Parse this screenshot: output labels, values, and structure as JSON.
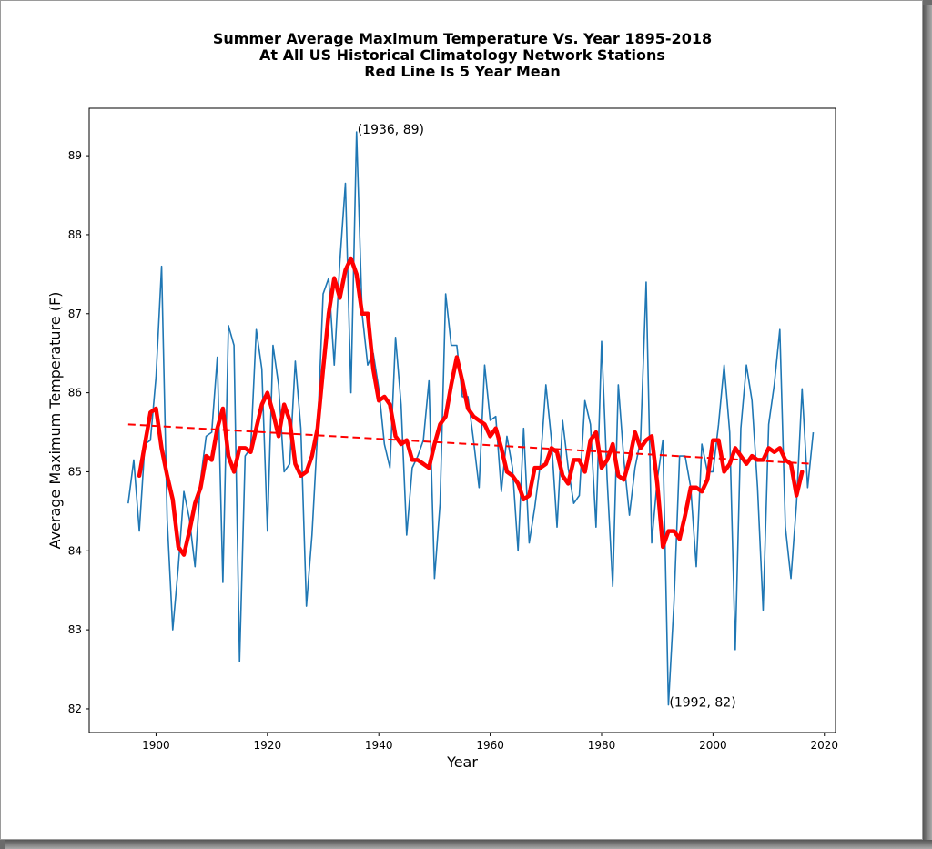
{
  "colors": {
    "raw_series": "#1f77b4",
    "mean_series": "#ff0000",
    "trend_line": "#ff0000"
  },
  "chart_data": {
    "type": "line",
    "title_lines": [
      "Summer Average Maximum Temperature Vs. Year 1895-2018",
      "At All US Historical Climatology Network Stations",
      "Red Line Is 5 Year Mean"
    ],
    "xlabel": "Year",
    "ylabel": "Average Maximum Temperature (F)",
    "xlim": [
      1888,
      2022
    ],
    "ylim": [
      81.7,
      89.6
    ],
    "xticks": [
      1900,
      1920,
      1940,
      1960,
      1980,
      2000,
      2020
    ],
    "yticks": [
      82,
      83,
      84,
      85,
      86,
      87,
      88,
      89
    ],
    "grid": false,
    "series": [
      {
        "style": "thin-blue-line",
        "x_start": 1895,
        "values": [
          84.6,
          85.15,
          84.25,
          85.35,
          85.4,
          86.2,
          87.6,
          84.4,
          83.0,
          83.8,
          84.75,
          84.4,
          83.8,
          84.9,
          85.45,
          85.5,
          86.45,
          83.6,
          86.85,
          86.6,
          82.6,
          85.2,
          85.3,
          86.8,
          86.3,
          84.25,
          86.6,
          86.1,
          85.0,
          85.1,
          86.4,
          85.55,
          83.3,
          84.2,
          85.5,
          87.25,
          87.45,
          86.35,
          87.65,
          88.65,
          86.0,
          89.3,
          87.0,
          86.35,
          86.5,
          86.05,
          85.35,
          85.05,
          86.7,
          85.85,
          84.2,
          85.05,
          85.2,
          85.4,
          86.15,
          83.65,
          84.6,
          87.25,
          86.6,
          86.6,
          85.95,
          85.95,
          85.4,
          84.8,
          86.35,
          85.65,
          85.7,
          84.75,
          85.45,
          85.05,
          84.0,
          85.55,
          84.1,
          84.55,
          85.1,
          86.1,
          85.4,
          84.3,
          85.65,
          85.05,
          84.6,
          84.7,
          85.9,
          85.6,
          84.3,
          86.65,
          84.9,
          83.55,
          86.1,
          85.15,
          84.45,
          85.05,
          85.4,
          87.4,
          84.1,
          84.9,
          85.4,
          82.05,
          83.35,
          85.2,
          85.2,
          84.8,
          83.8,
          85.35,
          85.0,
          85.0,
          85.6,
          86.35,
          85.5,
          82.75,
          85.55,
          86.35,
          85.9,
          84.8,
          83.25,
          85.6,
          86.1,
          86.8,
          84.3,
          83.65,
          84.6,
          86.05,
          84.8,
          85.5
        ]
      },
      {
        "style": "thick-red-line",
        "x_start": 1897,
        "values": [
          84.95,
          85.35,
          85.75,
          85.8,
          85.3,
          84.95,
          84.65,
          84.05,
          83.95,
          84.25,
          84.6,
          84.8,
          85.2,
          85.15,
          85.55,
          85.8,
          85.2,
          85.0,
          85.3,
          85.3,
          85.25,
          85.55,
          85.85,
          86.0,
          85.75,
          85.45,
          85.85,
          85.65,
          85.1,
          84.95,
          85.0,
          85.2,
          85.55,
          86.3,
          87.0,
          87.45,
          87.2,
          87.55,
          87.7,
          87.5,
          87.0,
          87.0,
          86.3,
          85.9,
          85.95,
          85.85,
          85.45,
          85.35,
          85.4,
          85.15,
          85.15,
          85.1,
          85.05,
          85.35,
          85.6,
          85.7,
          86.1,
          86.45,
          86.15,
          85.8,
          85.7,
          85.65,
          85.6,
          85.45,
          85.55,
          85.3,
          85.0,
          84.95,
          84.85,
          84.65,
          84.7,
          85.05,
          85.05,
          85.1,
          85.3,
          85.25,
          84.95,
          84.85,
          85.15,
          85.15,
          85.0,
          85.4,
          85.5,
          85.05,
          85.15,
          85.35,
          84.95,
          84.9,
          85.15,
          85.5,
          85.3,
          85.4,
          85.45,
          84.85,
          84.05,
          84.25,
          84.25,
          84.15,
          84.45,
          84.8,
          84.8,
          84.75,
          84.9,
          85.4,
          85.4,
          85.0,
          85.1,
          85.3,
          85.2,
          85.1,
          85.2,
          85.15,
          85.15,
          85.3,
          85.25,
          85.3,
          85.15,
          85.1,
          84.7,
          85.0
        ]
      },
      {
        "style": "dashed-red-trend",
        "x": [
          1895,
          2018
        ],
        "values": [
          85.6,
          85.1
        ]
      }
    ],
    "annotations": [
      {
        "text": "(1936, 89)",
        "x": 1936,
        "y": 89.3
      },
      {
        "text": "(1992, 82)",
        "x": 1992,
        "y": 82.05
      }
    ]
  }
}
